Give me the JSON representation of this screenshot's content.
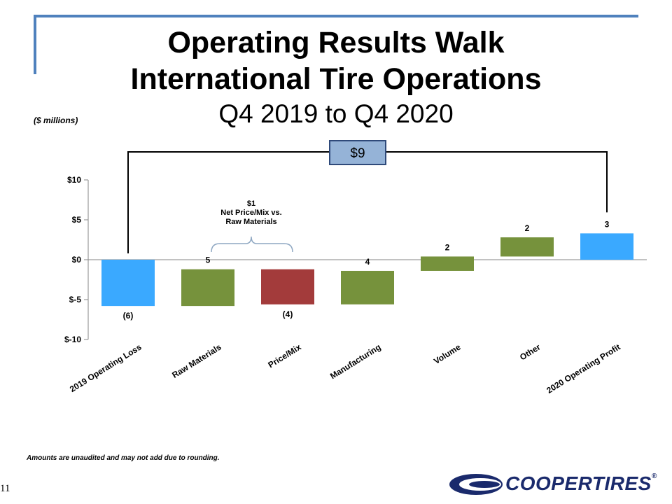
{
  "header": {
    "title_line1": "Operating Results Walk",
    "title_line2": "International Tire Operations",
    "subtitle": "Q4 2019 to Q4 2020"
  },
  "units_note": "($ millions)",
  "footnote": "Amounts are unaudited and may not add due to rounding.",
  "page_number": "11",
  "logo": {
    "text": "COOPERTIRES",
    "registered": "®"
  },
  "colors": {
    "total": "#3aa9ff",
    "increase": "#76923c",
    "decrease": "#a33b3b",
    "box": "#95b3d7",
    "frame": "#4f81bd"
  },
  "chart_data": {
    "type": "waterfall",
    "ylim": [
      -10,
      10
    ],
    "yticks": [
      10,
      5,
      0,
      -5,
      -10
    ],
    "ytick_labels": [
      "$10",
      "$5",
      "$0",
      "$-5",
      "$-10"
    ],
    "bars": [
      {
        "category": "2019 Operating Loss",
        "start": 0,
        "end": -5.8,
        "label": "(6)",
        "kind": "total",
        "label_pos": "below"
      },
      {
        "category": "Raw Materials",
        "start": -5.8,
        "end": -1.2,
        "label": "5",
        "kind": "increase",
        "label_pos": "above"
      },
      {
        "category": "Price/Mix",
        "start": -1.2,
        "end": -5.6,
        "label": "(4)",
        "kind": "decrease",
        "label_pos": "below"
      },
      {
        "category": "Manufacturing",
        "start": -5.6,
        "end": -1.4,
        "label": "4",
        "kind": "increase",
        "label_pos": "above"
      },
      {
        "category": "Volume",
        "start": -1.4,
        "end": 0.4,
        "label": "2",
        "kind": "increase",
        "label_pos": "above"
      },
      {
        "category": "Other",
        "start": 0.4,
        "end": 2.8,
        "label": "2",
        "kind": "increase",
        "label_pos": "above"
      },
      {
        "category": "2020 Operating Profit",
        "start": 0,
        "end": 3.3,
        "label": "3",
        "kind": "total",
        "label_pos": "above"
      }
    ],
    "total_change_label": "$9",
    "bracket_annotation": {
      "lines": [
        "$1",
        "Net Price/Mix vs.",
        "Raw Materials"
      ],
      "from_category": "Raw Materials",
      "to_category": "Price/Mix"
    }
  }
}
